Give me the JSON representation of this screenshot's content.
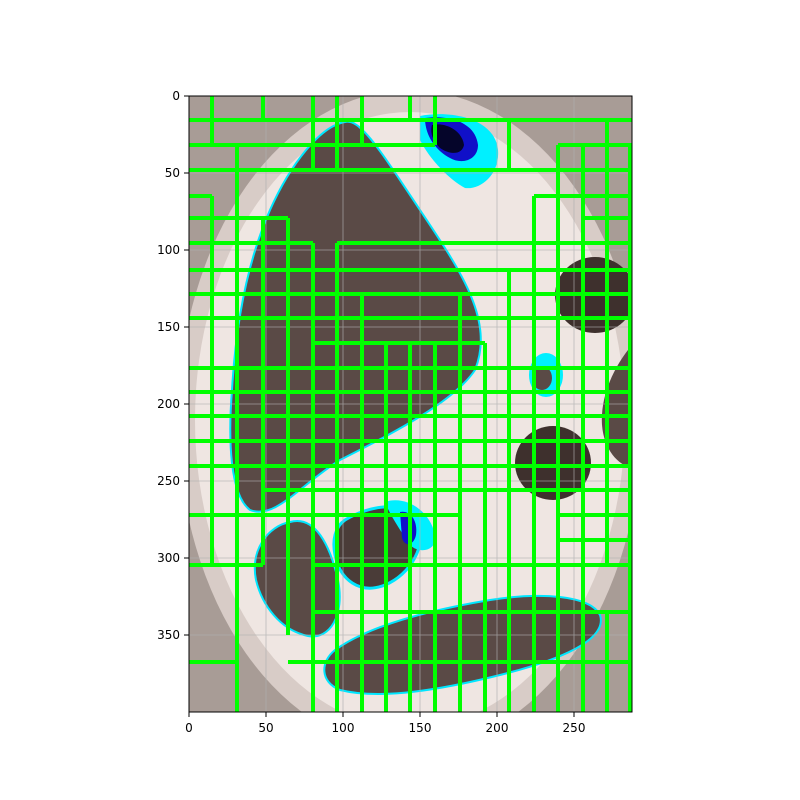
{
  "figure": {
    "kind": "image-with-grid-overlay",
    "description_colors": {
      "background_tan": "#a89c96",
      "light_cream": "#efe6e2",
      "dark_blob": "#5a4a46",
      "overlay_green": "#00ff00",
      "cyan_highlight": "#00f0ff",
      "blue_highlight": "#0000cc"
    },
    "x_ticks": [
      "0",
      "50",
      "100",
      "150",
      "200",
      "250"
    ],
    "y_ticks": [
      "0",
      "50",
      "100",
      "150",
      "200",
      "250",
      "300",
      "350"
    ],
    "x_range": [
      0,
      287
    ],
    "y_range": [
      0,
      400
    ],
    "gridlines": true
  },
  "chart_data": {
    "type": "table",
    "xlim": [
      0,
      287
    ],
    "ylim": [
      400,
      0
    ],
    "grid": true
  }
}
